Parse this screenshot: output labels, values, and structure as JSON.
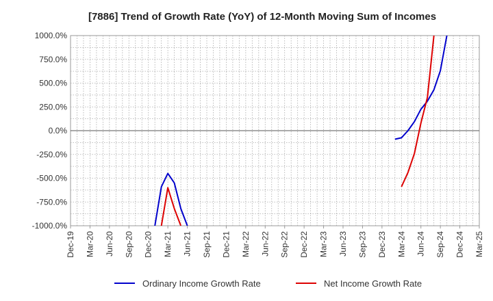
{
  "chart_data": {
    "type": "line",
    "title": "[7886]  Trend of Growth Rate (YoY) of 12-Month Moving Sum of Incomes",
    "xlabel": "",
    "ylabel": "",
    "ylim": [
      -1000,
      1000
    ],
    "y_ticks": [
      1000,
      750,
      500,
      250,
      0,
      -250,
      -500,
      -750,
      -1000
    ],
    "y_tick_labels": [
      "1000.0%",
      "750.0%",
      "500.0%",
      "250.0%",
      "0.0%",
      "-250.0%",
      "-500.0%",
      "-750.0%",
      "-1000.0%"
    ],
    "x_range": [
      "2019-12",
      "2025-03"
    ],
    "x_tick_labels": [
      "Dec-19",
      "Mar-20",
      "Jun-20",
      "Sep-20",
      "Dec-20",
      "Mar-21",
      "Jun-21",
      "Sep-21",
      "Dec-21",
      "Mar-22",
      "Jun-22",
      "Sep-22",
      "Dec-22",
      "Mar-23",
      "Jun-23",
      "Sep-23",
      "Dec-23",
      "Mar-24",
      "Jun-24",
      "Sep-24",
      "Dec-24",
      "Mar-25"
    ],
    "grid": true,
    "legend_position": "bottom",
    "series": [
      {
        "name": "Ordinary Income Growth Rate",
        "color": "#0000cc",
        "points": [
          {
            "x": "2021-01",
            "y": -1000
          },
          {
            "x": "2021-02",
            "y": -590
          },
          {
            "x": "2021-03",
            "y": -450
          },
          {
            "x": "2021-04",
            "y": -550
          },
          {
            "x": "2021-05",
            "y": -820
          },
          {
            "x": "2021-06",
            "y": -1000
          },
          {
            "x": "2024-02",
            "y": -90
          },
          {
            "x": "2024-03",
            "y": -75
          },
          {
            "x": "2024-04",
            "y": 0
          },
          {
            "x": "2024-05",
            "y": 95
          },
          {
            "x": "2024-06",
            "y": 225
          },
          {
            "x": "2024-07",
            "y": 310
          },
          {
            "x": "2024-08",
            "y": 430
          },
          {
            "x": "2024-09",
            "y": 630
          },
          {
            "x": "2024-10",
            "y": 1000
          }
        ]
      },
      {
        "name": "Net Income Growth Rate",
        "color": "#dd0000",
        "points": [
          {
            "x": "2021-02",
            "y": -1000
          },
          {
            "x": "2021-03",
            "y": -600
          },
          {
            "x": "2021-04",
            "y": -820
          },
          {
            "x": "2021-05",
            "y": -1000
          },
          {
            "x": "2024-03",
            "y": -590
          },
          {
            "x": "2024-04",
            "y": -440
          },
          {
            "x": "2024-05",
            "y": -240
          },
          {
            "x": "2024-06",
            "y": 80
          },
          {
            "x": "2024-07",
            "y": 350
          },
          {
            "x": "2024-08",
            "y": 1000
          }
        ]
      }
    ]
  }
}
